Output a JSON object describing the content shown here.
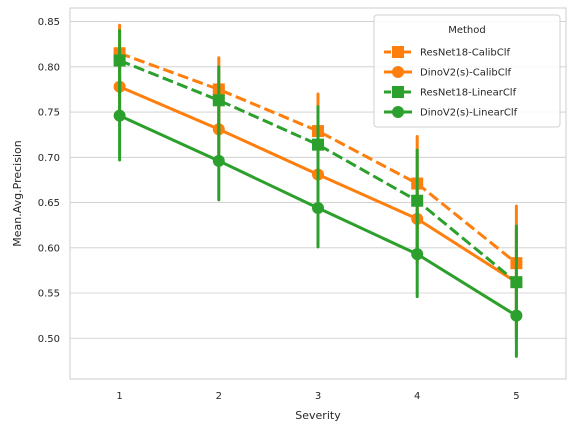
{
  "chart_data": {
    "type": "line",
    "title": "",
    "xlabel": "Severity",
    "ylabel": "Mean.Avg.Precision",
    "x": [
      1,
      2,
      3,
      4,
      5
    ],
    "x_ticks": [
      "1",
      "2",
      "3",
      "4",
      "5"
    ],
    "ylim": [
      0.455,
      0.865
    ],
    "y_ticks": [
      0.5,
      0.55,
      0.6,
      0.65,
      0.7,
      0.75,
      0.8,
      0.85
    ],
    "y_tick_labels": [
      "0.50",
      "0.55",
      "0.60",
      "0.65",
      "0.70",
      "0.75",
      "0.80",
      "0.85"
    ],
    "grid": "horizontal",
    "legend": {
      "title": "Method",
      "placement": "top-right"
    },
    "series": [
      {
        "name": "ResNet18-CalibClf",
        "color": "#ff7f0e",
        "linestyle": "dashed",
        "marker": "square",
        "values": [
          0.815,
          0.775,
          0.729,
          0.671,
          0.583
        ],
        "err_low": [
          0.783,
          0.741,
          0.688,
          0.62,
          0.521
        ],
        "err_high": [
          0.846,
          0.81,
          0.77,
          0.723,
          0.646
        ]
      },
      {
        "name": "DinoV2(s)-CalibClf",
        "color": "#ff7f0e",
        "linestyle": "solid",
        "marker": "circle",
        "values": [
          0.778,
          0.731,
          0.681,
          0.632,
          0.562
        ],
        "err_low": [
          0.742,
          0.693,
          0.637,
          0.583,
          0.506
        ],
        "err_high": [
          0.812,
          0.768,
          0.722,
          0.68,
          0.62
        ]
      },
      {
        "name": "ResNet18-LinearClf",
        "color": "#2ca02c",
        "linestyle": "dashed",
        "marker": "square",
        "values": [
          0.807,
          0.763,
          0.714,
          0.652,
          0.562
        ],
        "err_low": [
          0.773,
          0.724,
          0.672,
          0.597,
          0.5
        ],
        "err_high": [
          0.84,
          0.8,
          0.756,
          0.708,
          0.624
        ]
      },
      {
        "name": "DinoV2(s)-LinearClf",
        "color": "#2ca02c",
        "linestyle": "solid",
        "marker": "circle",
        "values": [
          0.746,
          0.696,
          0.644,
          0.593,
          0.525
        ],
        "err_low": [
          0.697,
          0.653,
          0.601,
          0.546,
          0.48
        ],
        "err_high": [
          0.79,
          0.739,
          0.687,
          0.64,
          0.569
        ]
      }
    ]
  }
}
